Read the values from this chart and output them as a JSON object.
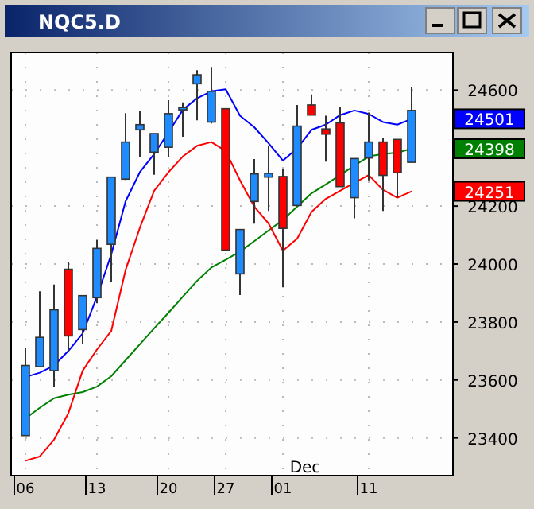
{
  "chart_data": {
    "type": "candlestick",
    "title": "NQC5.D",
    "categories": [
      "06",
      null,
      null,
      null,
      null,
      "13",
      null,
      null,
      null,
      null,
      "20",
      null,
      null,
      null,
      "27",
      null,
      null,
      null,
      "01",
      null,
      null,
      null,
      null,
      null,
      "11",
      null,
      null,
      null
    ],
    "ohlc": [
      [
        23408,
        23711,
        23408,
        23650
      ],
      [
        23646,
        23906,
        23646,
        23747
      ],
      [
        23632,
        23929,
        23577,
        23842
      ],
      [
        23982,
        24006,
        23696,
        23752
      ],
      [
        23774,
        23891,
        23723,
        23891
      ],
      [
        23884,
        24083,
        23865,
        24054
      ],
      [
        24068,
        24300,
        23938,
        24300
      ],
      [
        24293,
        24521,
        24290,
        24421
      ],
      [
        24463,
        24527,
        24368,
        24481
      ],
      [
        24386,
        24450,
        24308,
        24450
      ],
      [
        24403,
        24565,
        24368,
        24519
      ],
      [
        24532,
        24558,
        24439,
        24540
      ],
      [
        24622,
        24669,
        24496,
        24653
      ],
      [
        24490,
        24680,
        24485,
        24596
      ],
      [
        24536,
        24536,
        24048,
        24048
      ],
      [
        23966,
        24119,
        23893,
        24119
      ],
      [
        24216,
        24362,
        24139,
        24311
      ],
      [
        24300,
        24408,
        24183,
        24313
      ],
      [
        24302,
        24329,
        23920,
        24123
      ],
      [
        24202,
        24549,
        24202,
        24476
      ],
      [
        24549,
        24585,
        24514,
        24514
      ],
      [
        24466,
        24512,
        24353,
        24448
      ],
      [
        24487,
        24541,
        24267,
        24267
      ],
      [
        24229,
        24364,
        24158,
        24364
      ],
      [
        24366,
        24523,
        24289,
        24421
      ],
      [
        24421,
        24435,
        24183,
        24306
      ],
      [
        24430,
        24430,
        24229,
        24315
      ],
      [
        24351,
        24609,
        24351,
        24530
      ]
    ],
    "colors": [
      "#1e8cff",
      "#1e8cff",
      "#1e8cff",
      "#ff0000",
      "#1e8cff",
      "#1e8cff",
      "#1e8cff",
      "#1e8cff",
      "#1e8cff",
      "#1e8cff",
      "#1e8cff",
      "#1e8cff",
      "#1e8cff",
      "#1e8cff",
      "#ff0000",
      "#1e8cff",
      "#1e8cff",
      "#1e8cff",
      "#ff0000",
      "#1e8cff",
      "#ff0000",
      "#ff0000",
      "#ff0000",
      "#1e8cff",
      "#1e8cff",
      "#ff0000",
      "#ff0000",
      "#1e8cff"
    ],
    "series": [
      {
        "type": "line",
        "color": "#0000ff",
        "values": [
          23610,
          23625,
          23650,
          23700,
          23760,
          23887,
          24033,
          24216,
          24317,
          24380,
          24454,
          24532,
          24572,
          24596,
          24603,
          24512,
          24472,
          24417,
          24357,
          24399,
          24463,
          24481,
          24514,
          24530,
          24518,
          24490,
          24481,
          24501
        ]
      },
      {
        "type": "line",
        "color": "#008000",
        "values": [
          23467,
          23504,
          23537,
          23549,
          23558,
          23577,
          23613,
          23668,
          23723,
          23778,
          23832,
          23887,
          23942,
          23988,
          24015,
          24043,
          24079,
          24116,
          24152,
          24198,
          24244,
          24275,
          24307,
          24340,
          24371,
          24380,
          24384,
          24398
        ]
      },
      {
        "type": "line",
        "color": "#ff0000",
        "values": [
          23321,
          23336,
          23394,
          23485,
          23632,
          23705,
          23769,
          23979,
          24125,
          24253,
          24317,
          24371,
          24408,
          24421,
          24390,
          24289,
          24198,
          24140,
          24046,
          24088,
          24180,
          24225,
          24253,
          24280,
          24307,
          24256,
          24229,
          24251
        ]
      }
    ],
    "ylim": [
      23270,
      24730
    ],
    "yticks": [
      23400,
      23600,
      23800,
      24000,
      24200,
      24600
    ],
    "annotations": [
      "Dec",
      "24501",
      "24398",
      "24251"
    ],
    "grid": true,
    "marker": "none",
    "line_style": "solid"
  }
}
